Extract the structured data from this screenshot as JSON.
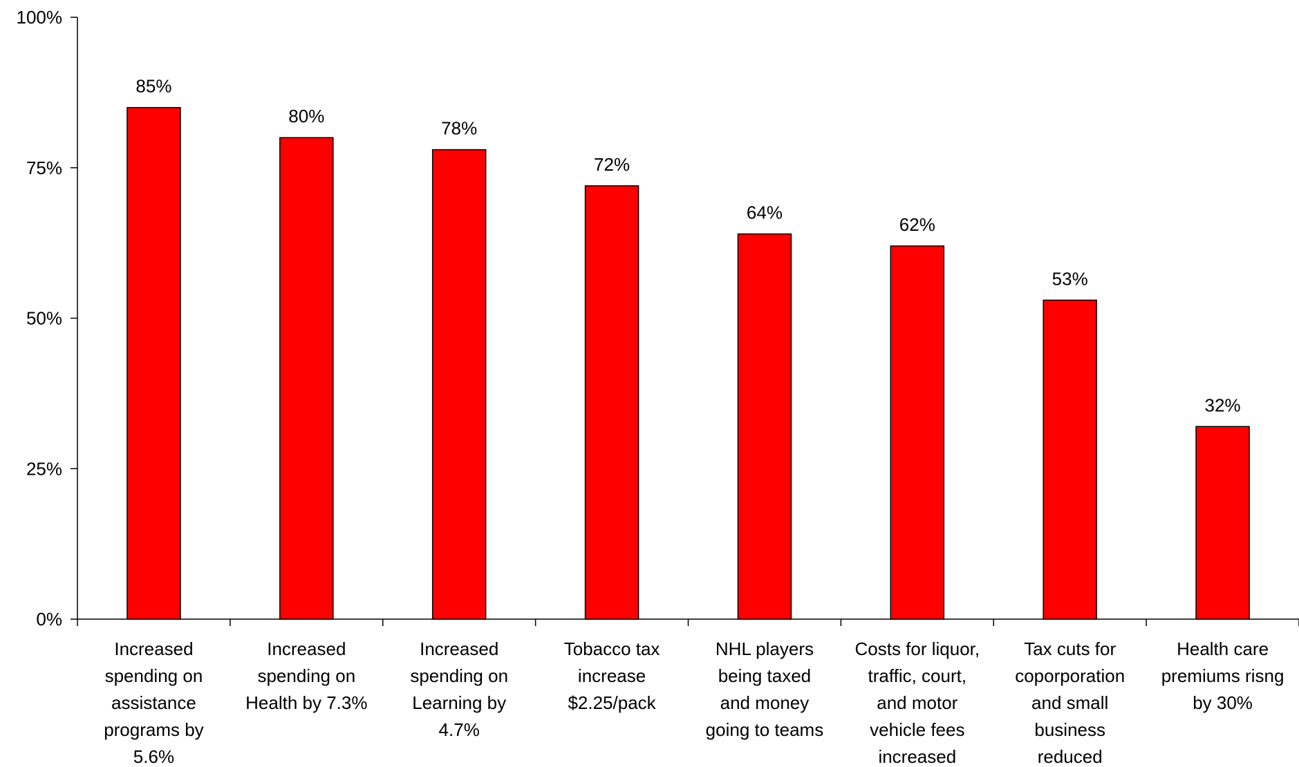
{
  "chart_data": {
    "type": "bar",
    "categories": [
      [
        "Increased",
        "spending on",
        "assistance",
        "programs by",
        "5.6%"
      ],
      [
        "Increased",
        "spending on",
        "Health by 7.3%"
      ],
      [
        "Increased",
        "spending on",
        "Learning by",
        "4.7%"
      ],
      [
        "Tobacco tax",
        "increase",
        "$2.25/pack"
      ],
      [
        "NHL players",
        "being taxed",
        "and money",
        "going to teams"
      ],
      [
        "Costs for liquor,",
        "traffic, court,",
        "and motor",
        "vehicle fees",
        "increased"
      ],
      [
        "Tax cuts for",
        "coporporation",
        "and small",
        "business",
        "reduced"
      ],
      [
        "Health care",
        "premiums risng",
        "by 30%"
      ]
    ],
    "values": [
      85,
      80,
      78,
      72,
      64,
      62,
      53,
      32
    ],
    "data_labels": [
      "85%",
      "80%",
      "78%",
      "72%",
      "64%",
      "62%",
      "53%",
      "32%"
    ],
    "ylim": [
      0,
      100
    ],
    "yticks": [
      0,
      25,
      50,
      75,
      100
    ],
    "ytick_labels": [
      "0%",
      "25%",
      "50%",
      "75%",
      "100%"
    ],
    "bar_color": "#ff0000",
    "bar_edge_color": "#000000",
    "grid": false,
    "legend": "none"
  }
}
